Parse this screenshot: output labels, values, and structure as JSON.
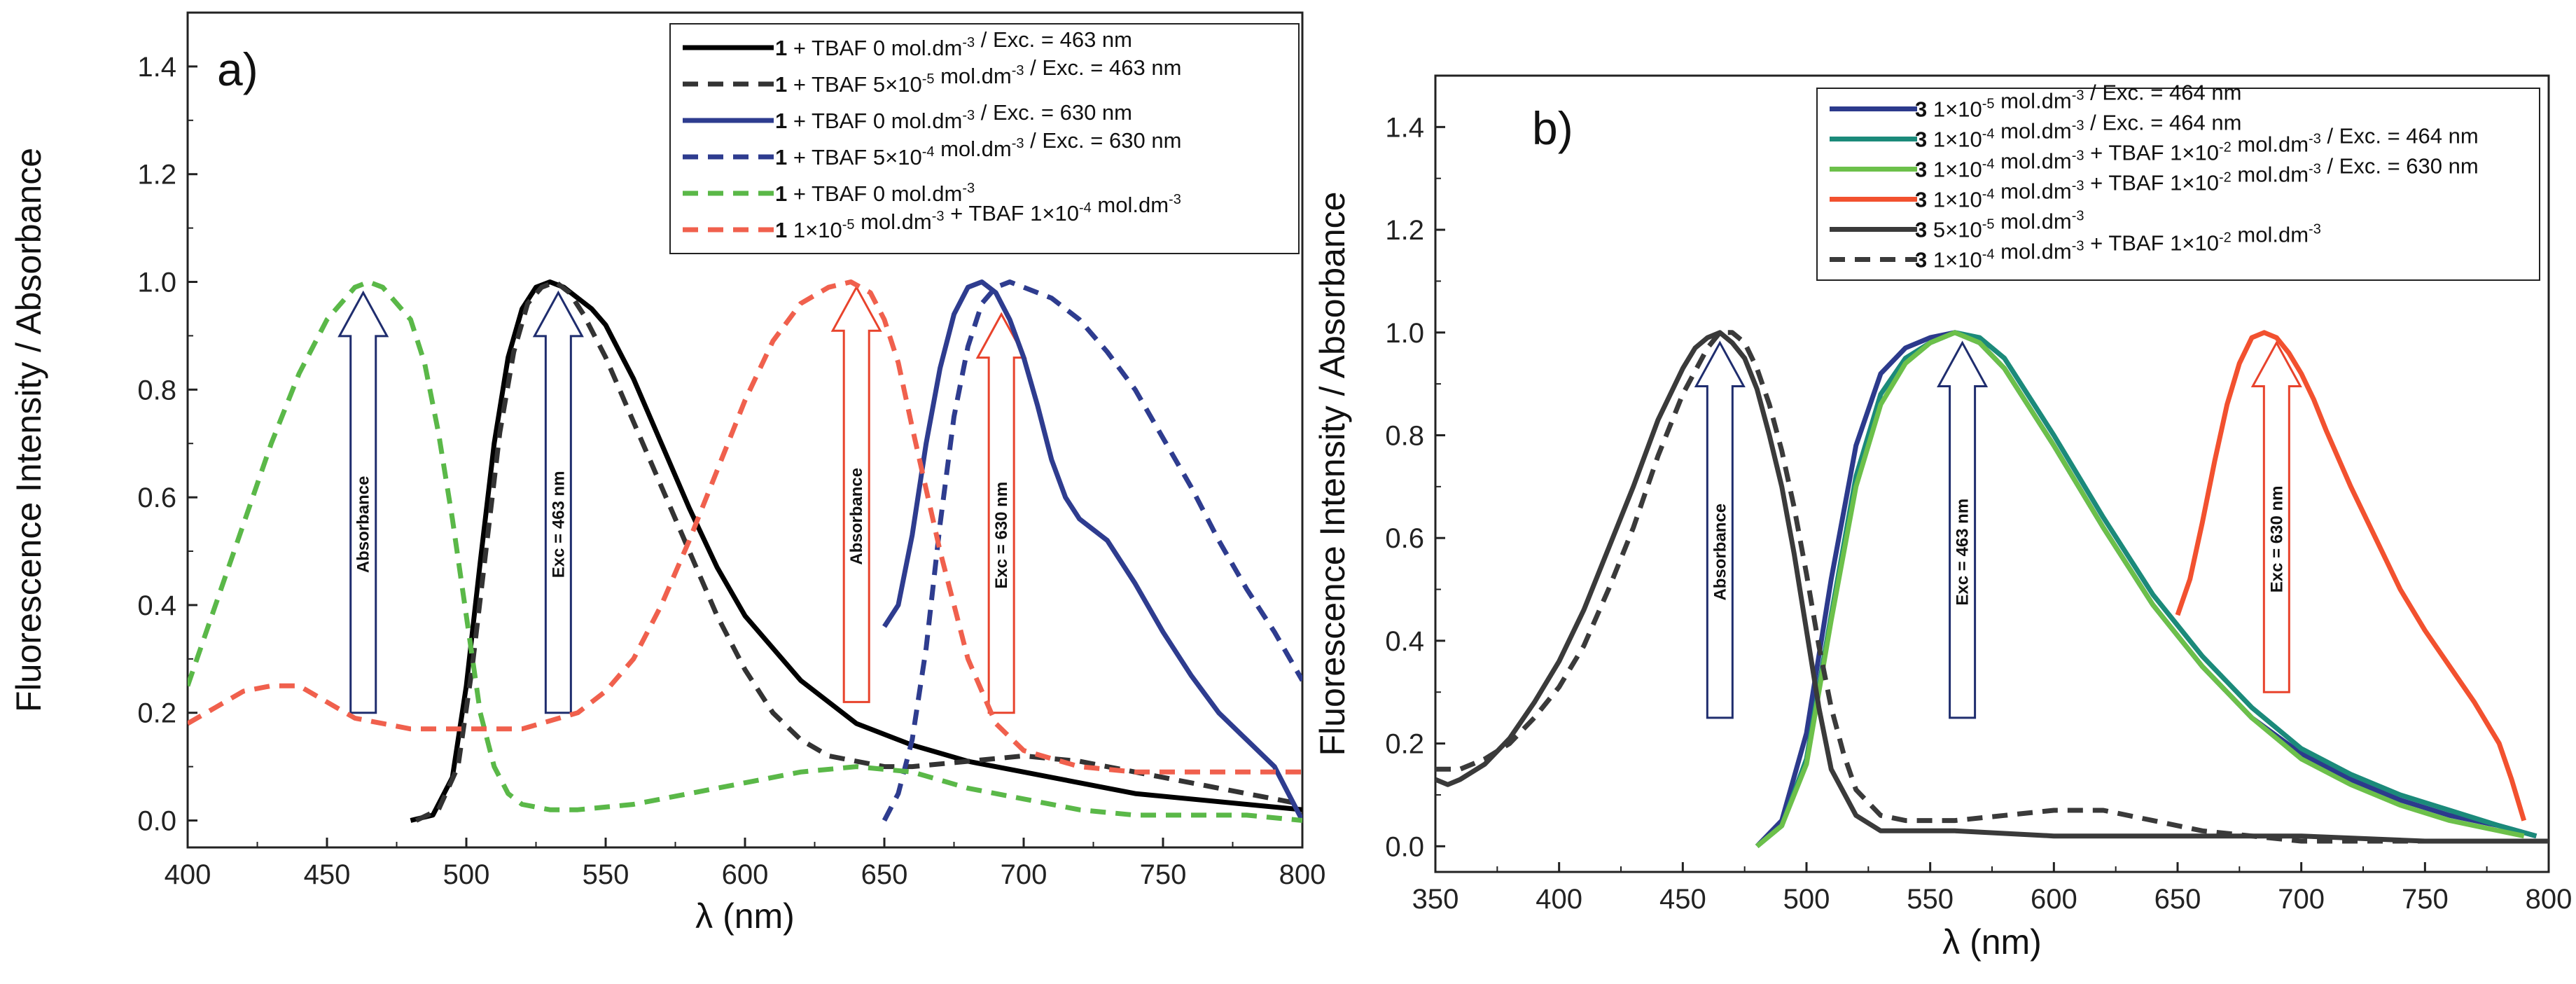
{
  "chart_data": [
    {
      "panel": "a)",
      "type": "line",
      "xlabel": "λ (nm)",
      "ylabel": "Fluorescence Intensity / Absorbance",
      "xlim": [
        400,
        800
      ],
      "ylim": [
        -0.05,
        1.5
      ],
      "xticks": [
        "400",
        "450",
        "500",
        "550",
        "600",
        "650",
        "700",
        "750",
        "800"
      ],
      "yticks": [
        "0.0",
        "0.2",
        "0.4",
        "0.6",
        "0.8",
        "1.0",
        "1.2",
        "1.4"
      ],
      "legend_position": "top-right",
      "series": [
        {
          "name": "1 + TBAF 0 mol.dm-3 / Exc. = 463 nm",
          "legend": {
            "bold": "1",
            "text": " + TBAF 0 mol.dm",
            "sup": "-3",
            "text2": " / Exc. = 463 nm"
          },
          "color": "#000000",
          "dash": "solid",
          "x": [
            480,
            488,
            495,
            500,
            505,
            510,
            515,
            520,
            525,
            530,
            535,
            540,
            545,
            550,
            555,
            560,
            570,
            580,
            590,
            600,
            620,
            640,
            660,
            680,
            700,
            720,
            740,
            760,
            780,
            800
          ],
          "y": [
            0.0,
            0.01,
            0.08,
            0.25,
            0.48,
            0.7,
            0.86,
            0.95,
            0.99,
            1.0,
            0.99,
            0.97,
            0.95,
            0.92,
            0.87,
            0.82,
            0.7,
            0.58,
            0.47,
            0.38,
            0.26,
            0.18,
            0.14,
            0.11,
            0.09,
            0.07,
            0.05,
            0.04,
            0.03,
            0.02
          ]
        },
        {
          "name": "1 + TBAF 5×10-5 mol.dm-3 / Exc. = 463 nm",
          "legend": {
            "bold": "1",
            "text": " + TBAF 5×10",
            "sup": "-5",
            "text2": " mol.dm",
            "sup2": "-3",
            "text3": " / Exc. = 463 nm"
          },
          "color": "#333333",
          "dash": "dashed",
          "x": [
            482,
            490,
            497,
            502,
            507,
            512,
            517,
            522,
            527,
            532,
            537,
            542,
            550,
            560,
            570,
            580,
            590,
            600,
            610,
            620,
            630,
            640,
            650,
            660,
            680,
            700,
            720,
            740,
            760,
            780,
            800
          ],
          "y": [
            0.0,
            0.02,
            0.1,
            0.28,
            0.5,
            0.72,
            0.87,
            0.96,
            0.99,
            1.0,
            0.98,
            0.94,
            0.86,
            0.74,
            0.62,
            0.5,
            0.38,
            0.28,
            0.2,
            0.15,
            0.12,
            0.11,
            0.1,
            0.1,
            0.11,
            0.12,
            0.11,
            0.09,
            0.07,
            0.05,
            0.03
          ]
        },
        {
          "name": "1 + TBAF 0 mol.dm-3 / Exc. = 630 nm",
          "legend": {
            "bold": "1",
            "text": " + TBAF 0 mol.dm",
            "sup": "-3",
            "text2": " / Exc. = 630 nm"
          },
          "color": "#2e3c8f",
          "dash": "solid",
          "x": [
            650,
            655,
            660,
            665,
            670,
            675,
            680,
            685,
            690,
            695,
            700,
            705,
            710,
            715,
            720,
            725,
            730,
            740,
            750,
            760,
            770,
            780,
            790,
            795,
            800
          ],
          "y": [
            0.36,
            0.4,
            0.53,
            0.7,
            0.84,
            0.94,
            0.99,
            1.0,
            0.98,
            0.93,
            0.86,
            0.77,
            0.67,
            0.6,
            0.56,
            0.54,
            0.52,
            0.44,
            0.35,
            0.27,
            0.2,
            0.15,
            0.1,
            0.05,
            0.0
          ]
        },
        {
          "name": "1 + TBAF 5×10-4 mol.dm-3 / Exc. = 630 nm",
          "legend": {
            "bold": "1",
            "text": " + TBAF 5×10",
            "sup": "-4",
            "text2": " mol.dm",
            "sup2": "-3",
            "text3": " / Exc. = 630 nm"
          },
          "color": "#2e3c8f",
          "dash": "dashed",
          "x": [
            650,
            655,
            660,
            665,
            670,
            675,
            680,
            685,
            690,
            695,
            700,
            710,
            720,
            730,
            740,
            750,
            760,
            770,
            780,
            790,
            800
          ],
          "y": [
            0.0,
            0.05,
            0.15,
            0.32,
            0.55,
            0.75,
            0.88,
            0.96,
            0.99,
            1.0,
            0.99,
            0.97,
            0.93,
            0.87,
            0.8,
            0.71,
            0.62,
            0.52,
            0.43,
            0.35,
            0.26
          ]
        },
        {
          "name": "1 + TBAF 0 mol.dm-3",
          "legend": {
            "bold": "1",
            "text": " + TBAF 0 mol.dm",
            "sup": "-3"
          },
          "color": "#5ab848",
          "dash": "dashed",
          "x": [
            400,
            410,
            420,
            430,
            440,
            450,
            460,
            465,
            470,
            480,
            485,
            490,
            495,
            500,
            505,
            510,
            515,
            520,
            530,
            540,
            560,
            580,
            600,
            620,
            640,
            660,
            680,
            700,
            720,
            740,
            760,
            780,
            800
          ],
          "y": [
            0.25,
            0.4,
            0.55,
            0.7,
            0.83,
            0.93,
            0.99,
            1.0,
            0.99,
            0.93,
            0.85,
            0.72,
            0.56,
            0.38,
            0.2,
            0.1,
            0.05,
            0.03,
            0.02,
            0.02,
            0.03,
            0.05,
            0.07,
            0.09,
            0.1,
            0.09,
            0.06,
            0.04,
            0.02,
            0.01,
            0.01,
            0.01,
            0.0
          ]
        },
        {
          "name": "1 1×10-5 mol.dm-3 + TBAF 1×10-4 mol.dm-3",
          "legend": {
            "bold": "1",
            "text": " 1×10",
            "sup": "-5",
            "text2": " mol.dm",
            "sup2": "-3",
            "text3": " + TBAF 1×10",
            "sup3": "-4",
            "text4": " mol.dm",
            "sup4": "-3"
          },
          "color": "#f0604d",
          "dash": "dashed",
          "x": [
            400,
            410,
            420,
            430,
            440,
            450,
            460,
            470,
            480,
            500,
            520,
            540,
            550,
            560,
            570,
            580,
            590,
            600,
            610,
            620,
            630,
            638,
            645,
            650,
            655,
            660,
            670,
            680,
            690,
            700,
            720,
            740,
            760,
            780,
            800
          ],
          "y": [
            0.18,
            0.21,
            0.24,
            0.25,
            0.25,
            0.22,
            0.19,
            0.18,
            0.17,
            0.17,
            0.17,
            0.2,
            0.24,
            0.3,
            0.4,
            0.52,
            0.65,
            0.78,
            0.89,
            0.96,
            0.99,
            1.0,
            0.98,
            0.93,
            0.85,
            0.73,
            0.5,
            0.3,
            0.18,
            0.13,
            0.1,
            0.09,
            0.09,
            0.09,
            0.09
          ]
        }
      ],
      "annotations": [
        {
          "text": "Absorbance",
          "color": "#1f2d6e",
          "x": 463,
          "y0": 0.2,
          "y1": 0.98
        },
        {
          "text": "Exc = 463 nm",
          "color": "#1f2d6e",
          "x": 533,
          "y0": 0.2,
          "y1": 0.98
        },
        {
          "text": "Absorbance",
          "color": "#e8432c",
          "x": 640,
          "y0": 0.22,
          "y1": 0.99
        },
        {
          "text": "Exc = 630 nm",
          "color": "#e8432c",
          "x": 692,
          "y0": 0.2,
          "y1": 0.94
        }
      ]
    },
    {
      "panel": "b)",
      "type": "line",
      "xlabel": "λ (nm)",
      "ylabel": "Fluorescence Intensity / Absorbance",
      "xlim": [
        350,
        800
      ],
      "ylim": [
        -0.05,
        1.5
      ],
      "xticks": [
        "350",
        "400",
        "450",
        "500",
        "550",
        "600",
        "650",
        "700",
        "750",
        "800"
      ],
      "yticks": [
        "0.0",
        "0.2",
        "0.4",
        "0.6",
        "0.8",
        "1.0",
        "1.2",
        "1.4"
      ],
      "legend_position": "top-right",
      "series": [
        {
          "name": "3 1×10-5 mol.dm-3 / Exc. = 464 nm",
          "legend": {
            "bold": "3",
            "text": " 1×10",
            "sup": "-5",
            "text2": " mol.dm",
            "sup2": "-3",
            "text3": " / Exc. = 464 nm"
          },
          "color": "#2c3a8c",
          "dash": "solid",
          "x": [
            480,
            490,
            500,
            510,
            520,
            530,
            540,
            550,
            560,
            570,
            580,
            600,
            620,
            640,
            660,
            680,
            700,
            720,
            740,
            760,
            780,
            795
          ],
          "y": [
            0.0,
            0.05,
            0.22,
            0.52,
            0.78,
            0.92,
            0.97,
            0.99,
            1.0,
            0.98,
            0.93,
            0.78,
            0.62,
            0.47,
            0.35,
            0.25,
            0.18,
            0.13,
            0.09,
            0.06,
            0.04,
            0.02
          ]
        },
        {
          "name": "3 1×10-4 mol.dm-3 / Exc. = 464 nm",
          "legend": {
            "bold": "3",
            "text": " 1×10",
            "sup": "-4",
            "text2": " mol.dm",
            "sup2": "-3",
            "text3": " / Exc. = 464 nm"
          },
          "color": "#1b8a7a",
          "dash": "solid",
          "x": [
            480,
            490,
            500,
            510,
            520,
            530,
            540,
            550,
            560,
            570,
            580,
            600,
            620,
            640,
            660,
            680,
            700,
            720,
            740,
            760,
            780,
            795
          ],
          "y": [
            0.0,
            0.04,
            0.17,
            0.45,
            0.72,
            0.88,
            0.95,
            0.98,
            1.0,
            0.99,
            0.95,
            0.8,
            0.64,
            0.49,
            0.37,
            0.27,
            0.19,
            0.14,
            0.1,
            0.07,
            0.04,
            0.02
          ]
        },
        {
          "name": "3 1×10-4 mol.dm-3 + TBAF 1×10-2 mol.dm-3 / Exc. = 464 nm",
          "legend": {
            "bold": "3",
            "text": " 1×10",
            "sup": "-4",
            "text2": " mol.dm",
            "sup2": "-3",
            "text3": " + TBAF 1×10",
            "sup3": "-2",
            "text4": " mol.dm",
            "sup4": "-3",
            "text5": " / Exc. = 464 nm"
          },
          "color": "#6cc04a",
          "dash": "solid",
          "x": [
            480,
            490,
            500,
            510,
            520,
            530,
            540,
            550,
            560,
            570,
            580,
            600,
            620,
            640,
            660,
            680,
            700,
            720,
            740,
            760,
            780,
            790
          ],
          "y": [
            0.0,
            0.04,
            0.16,
            0.44,
            0.7,
            0.86,
            0.94,
            0.98,
            1.0,
            0.98,
            0.93,
            0.78,
            0.62,
            0.47,
            0.35,
            0.25,
            0.17,
            0.12,
            0.08,
            0.05,
            0.03,
            0.02
          ]
        },
        {
          "name": "3 1×10-4 mol.dm-3 + TBAF 1×10-2 mol.dm-3 / Exc. = 630 nm",
          "legend": {
            "bold": "3",
            "text": " 1×10",
            "sup": "-4",
            "text2": " mol.dm",
            "sup2": "-3",
            "text3": " + TBAF 1×10",
            "sup3": "-2",
            "text4": " mol.dm",
            "sup4": "-3",
            "text5": " / Exc. = 630 nm"
          },
          "color": "#f2512f",
          "dash": "solid",
          "x": [
            650,
            655,
            660,
            665,
            670,
            675,
            680,
            685,
            690,
            695,
            700,
            705,
            710,
            720,
            730,
            740,
            750,
            760,
            770,
            780,
            785,
            790
          ],
          "y": [
            0.45,
            0.52,
            0.63,
            0.75,
            0.86,
            0.94,
            0.99,
            1.0,
            0.99,
            0.96,
            0.92,
            0.87,
            0.81,
            0.7,
            0.6,
            0.5,
            0.42,
            0.35,
            0.28,
            0.2,
            0.13,
            0.05
          ]
        },
        {
          "name": "3 5×10-5 mol.dm-3",
          "legend": {
            "bold": "3",
            "text": " 5×10",
            "sup": "-5",
            "text2": " mol.dm",
            "sup2": "-3"
          },
          "color": "#3a3a3a",
          "dash": "solid",
          "x": [
            350,
            355,
            360,
            370,
            380,
            390,
            400,
            410,
            420,
            430,
            440,
            450,
            455,
            460,
            465,
            470,
            475,
            480,
            485,
            490,
            495,
            500,
            505,
            510,
            520,
            530,
            540,
            560,
            600,
            650,
            700,
            750,
            800
          ],
          "y": [
            0.13,
            0.12,
            0.13,
            0.16,
            0.21,
            0.28,
            0.36,
            0.46,
            0.58,
            0.7,
            0.83,
            0.93,
            0.97,
            0.99,
            1.0,
            0.98,
            0.95,
            0.89,
            0.8,
            0.7,
            0.57,
            0.42,
            0.27,
            0.15,
            0.06,
            0.03,
            0.03,
            0.03,
            0.02,
            0.02,
            0.02,
            0.01,
            0.01
          ]
        },
        {
          "name": "3 1×10-4 mol.dm-3 + TBAF 1×10-2 mol.dm-3",
          "legend": {
            "bold": "3",
            "text": " 1×10",
            "sup": "-4",
            "text2": " mol.dm",
            "sup2": "-3",
            "text3": " + TBAF 1×10",
            "sup3": "-2",
            "text4": " mol.dm",
            "sup4": "-3"
          },
          "color": "#3a3a3a",
          "dash": "dashed",
          "x": [
            350,
            360,
            370,
            380,
            390,
            400,
            410,
            420,
            430,
            440,
            450,
            460,
            465,
            470,
            475,
            480,
            485,
            490,
            495,
            500,
            505,
            510,
            515,
            520,
            530,
            540,
            560,
            580,
            600,
            620,
            640,
            660,
            680,
            700,
            750,
            800
          ],
          "y": [
            0.15,
            0.15,
            0.17,
            0.2,
            0.25,
            0.31,
            0.39,
            0.5,
            0.62,
            0.76,
            0.88,
            0.97,
            1.0,
            1.0,
            0.98,
            0.93,
            0.86,
            0.77,
            0.66,
            0.53,
            0.39,
            0.27,
            0.18,
            0.11,
            0.06,
            0.05,
            0.05,
            0.06,
            0.07,
            0.07,
            0.05,
            0.03,
            0.02,
            0.01,
            0.01,
            0.01
          ]
        }
      ],
      "annotations": [
        {
          "text": "Absorbance",
          "color": "#1f2d6e",
          "x": 465,
          "y0": 0.25,
          "y1": 0.98
        },
        {
          "text": "Exc = 463 nm",
          "color": "#1f2d6e",
          "x": 563,
          "y0": 0.25,
          "y1": 0.98
        },
        {
          "text": "Exc = 630 nm",
          "color": "#e8432c",
          "x": 690,
          "y0": 0.3,
          "y1": 0.98
        }
      ]
    }
  ]
}
